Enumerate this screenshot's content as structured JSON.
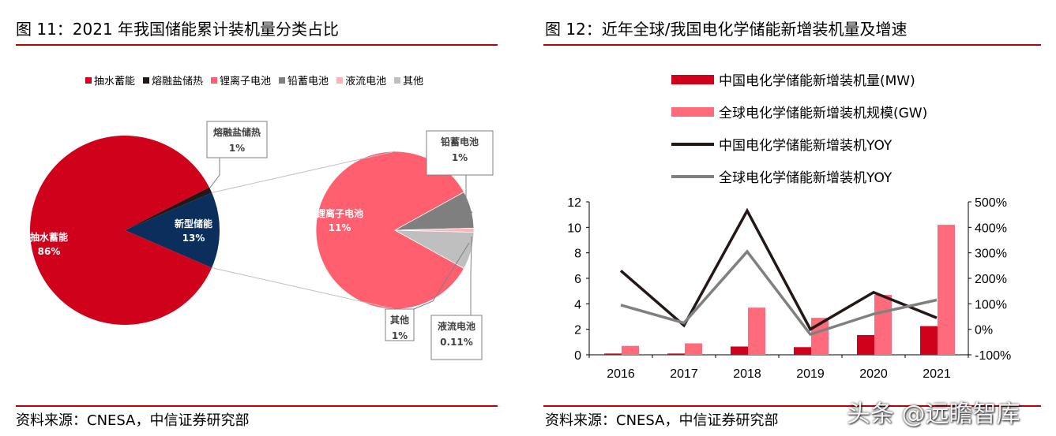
{
  "left": {
    "title": "图 11：2021 年我国储能累计装机量分类占比",
    "source": "资料来源：CNESA，中信证券研究部"
  },
  "right": {
    "title": "图 12：近年全球/我国电化学储能新增装机量及增速",
    "source": "资料来源：CNESA，中信证券研究部"
  },
  "watermark": "头条 @远瞻智库",
  "colors": {
    "rule": "#c00000",
    "pumped": "#d0021b",
    "molten": "#231815",
    "liion": "#ff5f6e",
    "lead": "#7f7f7f",
    "flow": "#ffb3b8",
    "other": "#bfbfbf",
    "newtype": "#0b2e5c",
    "china_bar": "#d0021b",
    "global_bar": "#ff6b7a",
    "china_line": "#231815",
    "global_line": "#808080"
  },
  "chart_data": [
    {
      "type": "pie",
      "legend": [
        "抽水蓄能",
        "熔融盐储热",
        "锂离子电池",
        "铅蓄电池",
        "液流电池",
        "其他"
      ],
      "main_pie": [
        {
          "label": "抽水蓄能",
          "value": 86,
          "text": "86%"
        },
        {
          "label": "熔融盐储热",
          "value": 1,
          "text": "1%"
        },
        {
          "label": "新型储能",
          "value": 13,
          "text": "13%"
        }
      ],
      "sub_pie": [
        {
          "label": "锂离子电池",
          "value": 11,
          "text": "11%"
        },
        {
          "label": "铅蓄电池",
          "value": 1,
          "text": "1%"
        },
        {
          "label": "液流电池",
          "value": 0.11,
          "text": "0.11%"
        },
        {
          "label": "其他",
          "value": 1,
          "text": "1%"
        }
      ]
    },
    {
      "type": "bar",
      "categories": [
        "2016",
        "2017",
        "2018",
        "2019",
        "2020",
        "2021"
      ],
      "series": [
        {
          "name": "中国电化学储能新增装机量(MW)",
          "kind": "bar",
          "axis": "left",
          "values": [
            0.1,
            0.1,
            0.65,
            0.6,
            1.55,
            2.25
          ]
        },
        {
          "name": "全球电化学储能新增装机规模(GW)",
          "kind": "bar",
          "axis": "left",
          "values": [
            0.7,
            0.9,
            3.7,
            2.9,
            4.7,
            10.2
          ]
        },
        {
          "name": "中国电化学储能新增装机YOY",
          "kind": "line",
          "axis": "right",
          "values": [
            230,
            15,
            465,
            0,
            145,
            45
          ]
        },
        {
          "name": "全球电化学储能新增装机YOY",
          "kind": "line",
          "axis": "right",
          "values": [
            95,
            25,
            305,
            -20,
            60,
            115
          ]
        }
      ],
      "left_axis": {
        "min": 0,
        "max": 12,
        "ticks": [
          "0",
          "2",
          "4",
          "6",
          "8",
          "10",
          "12"
        ]
      },
      "right_axis": {
        "min": -100,
        "max": 500,
        "ticks": [
          "-100%",
          "0%",
          "100%",
          "200%",
          "300%",
          "400%",
          "500%"
        ]
      },
      "grid": false,
      "legend_position": "top"
    }
  ]
}
